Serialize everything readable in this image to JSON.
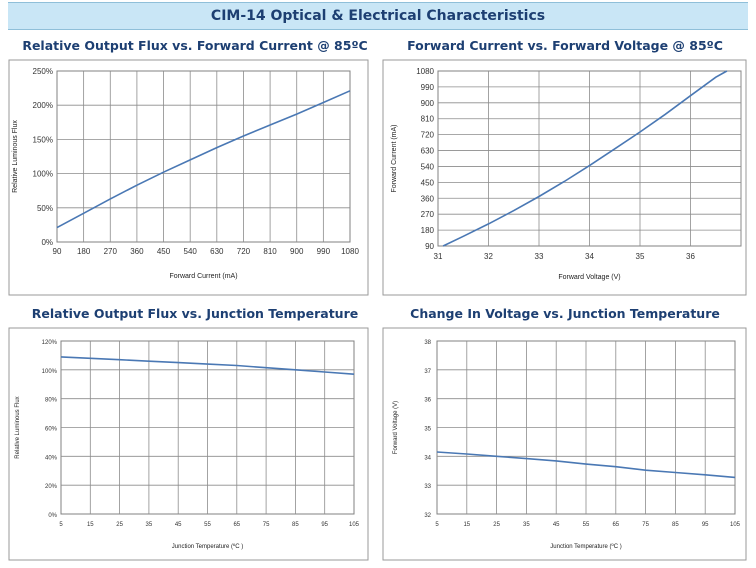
{
  "page_title": "CIM-14 Optical & Electrical Characteristics",
  "chart_data": [
    {
      "type": "line",
      "title": "Relative Output Flux vs. Forward Current @ 85ºC",
      "xlabel": "Forward Current (mA)",
      "ylabel": "Relative Luminous Flux",
      "x_ticks": [
        "90",
        "180",
        "270",
        "360",
        "450",
        "540",
        "630",
        "720",
        "810",
        "900",
        "990",
        "1080"
      ],
      "y_ticks": [
        "0%",
        "50%",
        "100%",
        "150%",
        "200%",
        "250%"
      ],
      "xlim": [
        90,
        1080
      ],
      "ylim": [
        0,
        250
      ],
      "grid": true,
      "series": [
        {
          "x": [
            90,
            180,
            270,
            360,
            450,
            540,
            630,
            720,
            810,
            900,
            990,
            1080
          ],
          "y": [
            21,
            42,
            63,
            83,
            102,
            120,
            138,
            155,
            171,
            187,
            204,
            221
          ]
        }
      ]
    },
    {
      "type": "line",
      "title": "Forward Current vs. Forward Voltage @ 85ºC",
      "xlabel": "Forward Voltage (V)",
      "ylabel": "Forward Current (mA)",
      "x_ticks": [
        "31",
        "32",
        "33",
        "34",
        "35",
        "36"
      ],
      "y_ticks": [
        "90",
        "180",
        "270",
        "360",
        "450",
        "540",
        "630",
        "720",
        "810",
        "900",
        "990",
        "1080"
      ],
      "xlim": [
        31,
        37
      ],
      "ylim": [
        90,
        1080
      ],
      "grid": true,
      "series": [
        {
          "x": [
            31.1,
            31.5,
            32,
            32.5,
            33,
            33.5,
            34,
            34.5,
            35,
            35.5,
            36,
            36.5,
            36.72
          ],
          "y": [
            90,
            145,
            215,
            290,
            370,
            455,
            545,
            640,
            735,
            835,
            940,
            1045,
            1080
          ]
        }
      ]
    },
    {
      "type": "line",
      "title": "Relative Output Flux vs. Junction Temperature",
      "xlabel": "Junction Temperature (ºC )",
      "ylabel": "Relative Luminous Flux",
      "x_ticks": [
        "5",
        "15",
        "25",
        "35",
        "45",
        "55",
        "65",
        "75",
        "85",
        "95",
        "105"
      ],
      "y_ticks": [
        "0%",
        "20%",
        "40%",
        "60%",
        "80%",
        "100%",
        "120%"
      ],
      "xlim": [
        5,
        105
      ],
      "ylim": [
        0,
        120
      ],
      "grid": true,
      "series": [
        {
          "x": [
            5,
            15,
            25,
            35,
            45,
            55,
            65,
            75,
            85,
            95,
            105
          ],
          "y": [
            109,
            108,
            107,
            106,
            105,
            104,
            103,
            101.5,
            100,
            98.5,
            97
          ]
        }
      ]
    },
    {
      "type": "line",
      "title": "Change In Voltage vs. Junction Temperature",
      "xlabel": "Junction Temperature (ºC )",
      "ylabel": "Forward Voltage (V)",
      "x_ticks": [
        "5",
        "15",
        "25",
        "35",
        "45",
        "55",
        "65",
        "75",
        "85",
        "95",
        "105"
      ],
      "y_ticks": [
        "32",
        "33",
        "34",
        "35",
        "36",
        "37",
        "38"
      ],
      "xlim": [
        5,
        105
      ],
      "ylim": [
        32,
        38
      ],
      "grid": true,
      "series": [
        {
          "x": [
            5,
            15,
            25,
            35,
            45,
            55,
            65,
            75,
            85,
            95,
            105
          ],
          "y": [
            34.15,
            34.08,
            34.0,
            33.92,
            33.84,
            33.73,
            33.64,
            33.52,
            33.44,
            33.36,
            33.27
          ]
        }
      ]
    }
  ]
}
